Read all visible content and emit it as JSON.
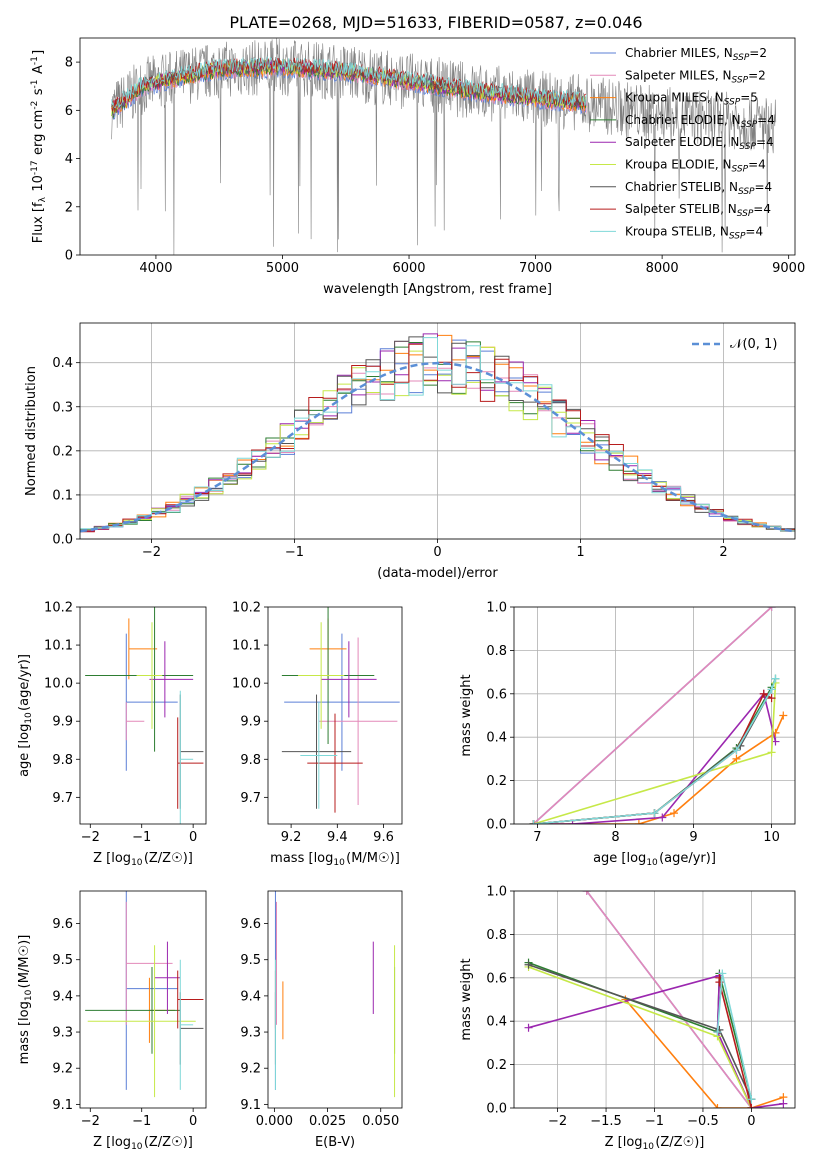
{
  "figure_title": "PLATE=0268, MJD=51633, FIBERID=0587, z=0.046",
  "series_colors": [
    "#5b7fd6",
    "#e389b9",
    "#ff7f0e",
    "#2e7d32",
    "#9b27af",
    "#c6e848",
    "#555555",
    "#b71c1c",
    "#7fd8d8"
  ],
  "chart_data": [
    {
      "id": "spectrum",
      "type": "line",
      "xlabel": "wavelength [Angstrom, rest frame]",
      "ylabel": "Flux [f_λ 10^-17 erg cm^-2 s^-1 A^-1]",
      "xlim": [
        3400,
        9050
      ],
      "ylim": [
        0,
        9
      ],
      "xticks": [
        4000,
        5000,
        6000,
        7000,
        8000,
        9000
      ],
      "yticks": [
        0,
        2,
        4,
        6,
        8
      ],
      "legend_position": "top-right",
      "legend": [
        {
          "base": "Chabrier MILES, N",
          "sub": "SSP",
          "tail": "=2"
        },
        {
          "base": "Salpeter MILES, N",
          "sub": "SSP",
          "tail": "=2"
        },
        {
          "base": "Kroupa MILES, N",
          "sub": "SSP",
          "tail": "=5"
        },
        {
          "base": "Chabrier ELODIE, N",
          "sub": "SSP",
          "tail": "=4"
        },
        {
          "base": "Salpeter ELODIE, N",
          "sub": "SSP",
          "tail": "=4"
        },
        {
          "base": "Kroupa ELODIE, N",
          "sub": "SSP",
          "tail": "=4"
        },
        {
          "base": "Chabrier STELIB, N",
          "sub": "SSP",
          "tail": "=4"
        },
        {
          "base": "Salpeter STELIB, N",
          "sub": "SSP",
          "tail": "=4"
        },
        {
          "base": "Kroupa STELIB, N",
          "sub": "SSP",
          "tail": "=4"
        }
      ],
      "data_range": [
        3650,
        8900
      ],
      "model_end_wavelength": 7400,
      "continuum": {
        "x": [
          3650,
          3900,
          4200,
          4500,
          5000,
          5500,
          6000,
          6500,
          7000,
          7400,
          8000,
          8500,
          8900
        ],
        "y": [
          6.0,
          7.0,
          7.4,
          7.7,
          7.8,
          7.6,
          7.2,
          6.8,
          6.5,
          6.3,
          5.8,
          5.6,
          5.4
        ]
      }
    },
    {
      "id": "residuals",
      "type": "histogram",
      "xlabel": "(data-model)/error",
      "ylabel": "Normed distribution",
      "xlim": [
        -2.5,
        2.5
      ],
      "ylim": [
        0,
        0.49
      ],
      "xticks": [
        -2,
        -1,
        0,
        1,
        2
      ],
      "yticks": [
        0.0,
        0.1,
        0.2,
        0.3,
        0.4
      ],
      "legend_position": "top-right",
      "gaussian_label": "𝒩(0, 1)",
      "bin_width": 0.1,
      "bin_start": -2.5,
      "bins": 50,
      "grid": true
    },
    {
      "id": "age-vs-Z",
      "type": "errorbar",
      "xlabel": "Z [log10(Z/Z☉)]",
      "ylabel": "age  [log10(age/yr)]",
      "xlim": [
        -2.2,
        0.25
      ],
      "ylim": [
        9.63,
        10.2
      ],
      "xticks": [
        -2,
        -1,
        0
      ],
      "yticks": [
        9.7,
        9.8,
        9.9,
        10.0,
        10.1,
        10.2
      ],
      "points": [
        {
          "x": -1.3,
          "y": 9.95,
          "xerr": [
            0.0,
            1.0
          ],
          "yerr": 0.18
        },
        {
          "x": -1.3,
          "y": 9.9,
          "xerr": [
            0.0,
            0.35
          ],
          "yerr": 0.05
        },
        {
          "x": -1.25,
          "y": 10.09,
          "xerr": [
            0.0,
            0.55
          ],
          "yerr": 0.08
        },
        {
          "x": -0.75,
          "y": 10.02,
          "xerr": [
            1.35,
            0.75
          ],
          "yerr": 0.2
        },
        {
          "x": -0.55,
          "y": 10.01,
          "xerr": [
            0.3,
            0.55
          ],
          "yerr": 0.1
        },
        {
          "x": -0.8,
          "y": 10.02,
          "xerr": [
            0.3,
            0.2
          ],
          "yerr": 0.14
        },
        {
          "x": -0.25,
          "y": 9.82,
          "xerr": [
            0.0,
            0.45
          ],
          "yerr": 0.15
        },
        {
          "x": -0.3,
          "y": 9.79,
          "xerr": [
            0.0,
            0.5
          ],
          "yerr": 0.12
        },
        {
          "x": -0.25,
          "y": 9.8,
          "xerr": [
            0.0,
            0.25
          ],
          "yerr": 0.18
        }
      ]
    },
    {
      "id": "age-vs-mass",
      "type": "errorbar",
      "xlabel": "mass [log10(M/M☉)]",
      "ylabel": "",
      "xlim": [
        9.1,
        9.68
      ],
      "ylim": [
        9.63,
        10.2
      ],
      "xticks": [
        9.2,
        9.4,
        9.6
      ],
      "yticks": [
        9.7,
        9.8,
        9.9,
        10.0,
        10.1,
        10.2
      ],
      "points": [
        {
          "x": 9.42,
          "y": 9.95,
          "xerr": 0.25,
          "yerr": 0.18
        },
        {
          "x": 9.49,
          "y": 9.9,
          "xerr": 0.17,
          "yerr": 0.22
        },
        {
          "x": 9.36,
          "y": 10.09,
          "xerr": 0.08,
          "yerr": 0.08
        },
        {
          "x": 9.36,
          "y": 10.02,
          "xerr": 0.2,
          "yerr": 0.18
        },
        {
          "x": 9.45,
          "y": 10.01,
          "xerr": 0.12,
          "yerr": 0.1
        },
        {
          "x": 9.33,
          "y": 10.02,
          "xerr": 0.1,
          "yerr": 0.14
        },
        {
          "x": 9.31,
          "y": 9.82,
          "xerr": 0.15,
          "yerr": 0.15
        },
        {
          "x": 9.39,
          "y": 9.79,
          "xerr": 0.12,
          "yerr": 0.13
        },
        {
          "x": 9.32,
          "y": 9.81,
          "xerr": 0.08,
          "yerr": 0.14
        }
      ]
    },
    {
      "id": "weight-vs-age",
      "type": "line",
      "xlabel": "age  [log10(age/yr)]",
      "ylabel": "mass weight",
      "xlim": [
        6.7,
        10.3
      ],
      "ylim": [
        0,
        1.0
      ],
      "xticks": [
        7,
        8,
        9,
        10
      ],
      "yticks": [
        0.0,
        0.2,
        0.4,
        0.6,
        0.8,
        1.0
      ],
      "grid": true,
      "series": [
        {
          "x": [
            6.95,
            10.0
          ],
          "y": [
            0.0,
            1.0
          ]
        },
        {
          "x": [
            6.95,
            10.0
          ],
          "y": [
            0.0,
            1.0
          ]
        },
        {
          "x": [
            6.95,
            8.3,
            8.75,
            9.55,
            10.05,
            10.15
          ],
          "y": [
            0.0,
            0.0,
            0.05,
            0.3,
            0.42,
            0.5
          ]
        },
        {
          "x": [
            6.95,
            8.5,
            9.55,
            10.0,
            10.05
          ],
          "y": [
            0.0,
            0.05,
            0.35,
            0.63,
            0.67
          ]
        },
        {
          "x": [
            6.95,
            7.45,
            8.6,
            9.9,
            10.05
          ],
          "y": [
            0.0,
            0.0,
            0.03,
            0.6,
            0.38
          ]
        },
        {
          "x": [
            6.95,
            10.0,
            10.05
          ],
          "y": [
            0.0,
            0.33,
            0.65
          ]
        },
        {
          "x": [
            6.95,
            8.5,
            9.6,
            10.0
          ],
          "y": [
            0.0,
            0.05,
            0.36,
            0.62
          ]
        },
        {
          "x": [
            6.95,
            8.5,
            9.55,
            9.9,
            10.0
          ],
          "y": [
            0.0,
            0.05,
            0.34,
            0.6,
            0.58
          ]
        },
        {
          "x": [
            6.95,
            8.5,
            9.55,
            10.0,
            10.05
          ],
          "y": [
            0.0,
            0.05,
            0.34,
            0.62,
            0.67
          ]
        }
      ]
    },
    {
      "id": "mass-vs-Z",
      "type": "errorbar",
      "xlabel": "Z [log10(Z/Z☉)]",
      "ylabel": "mass [log10(M/M☉)]",
      "xlim": [
        -2.2,
        0.25
      ],
      "ylim": [
        9.09,
        9.69
      ],
      "xticks": [
        -2,
        -1,
        0
      ],
      "yticks": [
        9.1,
        9.2,
        9.3,
        9.4,
        9.5,
        9.6
      ],
      "points": [
        {
          "x": -1.3,
          "y": 9.42,
          "xerr": [
            0.0,
            1.0
          ],
          "yerr": 0.28
        },
        {
          "x": -1.3,
          "y": 9.49,
          "xerr": [
            0.0,
            0.9
          ],
          "yerr": 0.17
        },
        {
          "x": -0.85,
          "y": 9.36,
          "xerr": [
            0.0,
            0.5
          ],
          "yerr": 0.09
        },
        {
          "x": -0.8,
          "y": 9.36,
          "xerr": [
            1.3,
            0.55
          ],
          "yerr": 0.12
        },
        {
          "x": -0.5,
          "y": 9.45,
          "xerr": [
            0.25,
            0.25
          ],
          "yerr": 0.1
        },
        {
          "x": -0.75,
          "y": 9.33,
          "xerr": [
            1.3,
            0.8
          ],
          "yerr": 0.21
        },
        {
          "x": -0.25,
          "y": 9.31,
          "xerr": [
            0.0,
            0.45
          ],
          "yerr": 0.1
        },
        {
          "x": -0.3,
          "y": 9.39,
          "xerr": [
            0.0,
            0.5
          ],
          "yerr": 0.08
        },
        {
          "x": -0.25,
          "y": 9.32,
          "xerr": [
            0.0,
            0.25
          ],
          "yerr": 0.18
        }
      ]
    },
    {
      "id": "mass-vs-EBV",
      "type": "errorbar",
      "xlabel": "E(B-V)",
      "ylabel": "",
      "xlim": [
        -0.003,
        0.06
      ],
      "ylim": [
        9.09,
        9.69
      ],
      "xticks": [
        0.0,
        0.025,
        0.05
      ],
      "xtick_labels": [
        "0.000",
        "0.025",
        "0.050"
      ],
      "yticks": [
        9.1,
        9.2,
        9.3,
        9.4,
        9.5,
        9.6
      ],
      "points": [
        {
          "x": 0.0005,
          "y": 9.42,
          "xerr": 0,
          "yerr": 0.28
        },
        {
          "x": 0.001,
          "y": 9.49,
          "xerr": 0,
          "yerr": 0.17
        },
        {
          "x": 0.004,
          "y": 9.36,
          "xerr": 0,
          "yerr": 0.08
        },
        {
          "x": 0.0565,
          "y": 9.36,
          "xerr": 0,
          "yerr": 0.12
        },
        {
          "x": 0.0465,
          "y": 9.45,
          "xerr": 0,
          "yerr": 0.1
        },
        {
          "x": 0.0565,
          "y": 9.33,
          "xerr": 0,
          "yerr": 0.21
        },
        {
          "x": 0.0005,
          "y": 9.31,
          "xerr": 0,
          "yerr": 0.1
        },
        {
          "x": 0.0005,
          "y": 9.39,
          "xerr": 0,
          "yerr": 0.08
        },
        {
          "x": 0.0005,
          "y": 9.32,
          "xerr": 0,
          "yerr": 0.18
        }
      ]
    },
    {
      "id": "weight-vs-Z",
      "type": "line",
      "xlabel": "Z [log10(Z/Z☉)]",
      "ylabel": "mass weight",
      "xlim": [
        -2.45,
        0.45
      ],
      "ylim": [
        0,
        1.0
      ],
      "xticks": [
        -2.0,
        -1.5,
        -1.0,
        -0.5,
        0.0
      ],
      "yticks": [
        0.0,
        0.2,
        0.4,
        0.6,
        0.8,
        1.0
      ],
      "grid": true,
      "series": [
        {
          "x": [
            -1.7,
            0.0
          ],
          "y": [
            1.0,
            0.0
          ]
        },
        {
          "x": [
            -1.7,
            0.0
          ],
          "y": [
            1.0,
            0.0
          ]
        },
        {
          "x": [
            -1.3,
            -0.35,
            0.0,
            0.33
          ],
          "y": [
            0.5,
            0.0,
            0.0,
            0.05
          ]
        },
        {
          "x": [
            -2.3,
            -0.35,
            -0.33,
            0.0
          ],
          "y": [
            0.67,
            0.35,
            0.62,
            0.04
          ]
        },
        {
          "x": [
            -2.3,
            -0.33,
            -0.35,
            0.0,
            0.33
          ],
          "y": [
            0.37,
            0.61,
            0.35,
            0.0,
            0.02
          ]
        },
        {
          "x": [
            -2.3,
            -0.35,
            0.0
          ],
          "y": [
            0.65,
            0.33,
            0.0
          ]
        },
        {
          "x": [
            -2.3,
            -0.33,
            0.0
          ],
          "y": [
            0.66,
            0.36,
            0.04
          ]
        },
        {
          "x": [
            -0.33,
            -0.33,
            0.0
          ],
          "y": [
            0.6,
            0.58,
            0.0
          ]
        },
        {
          "x": [
            -0.35,
            -0.3,
            0.0
          ],
          "y": [
            0.35,
            0.62,
            0.04
          ]
        }
      ]
    }
  ]
}
